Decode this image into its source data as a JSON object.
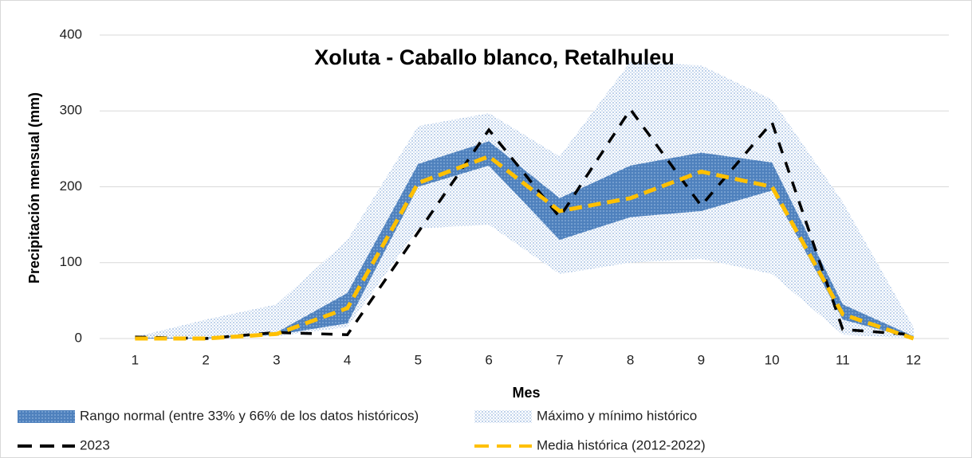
{
  "chart_data": {
    "type": "band-line",
    "title": "Xoluta - Caballo blanco, Retalhuleu",
    "x_label": "Mes",
    "y_label": "Precipitación mensual (mm)",
    "categories": [
      "1",
      "2",
      "3",
      "4",
      "5",
      "6",
      "7",
      "8",
      "9",
      "10",
      "11",
      "12"
    ],
    "ylim": [
      0,
      400
    ],
    "yticks": [
      0,
      100,
      200,
      300,
      400
    ],
    "grid": true,
    "legend": "bottom",
    "series": [
      {
        "name": "Rango normal (entre 33% y 66% de los datos históricos)",
        "kind": "band",
        "color": "#4f81bd",
        "low": [
          0,
          0,
          5,
          20,
          200,
          228,
          130,
          160,
          168,
          195,
          25,
          0
        ],
        "high": [
          1,
          1,
          8,
          60,
          230,
          260,
          185,
          228,
          245,
          232,
          45,
          3
        ]
      },
      {
        "name": "Máximo y mínimo histórico",
        "kind": "band",
        "color": "#9dbbe0",
        "low": [
          0,
          0,
          3,
          15,
          145,
          150,
          85,
          100,
          105,
          85,
          5,
          0
        ],
        "high": [
          2,
          25,
          45,
          130,
          280,
          297,
          240,
          365,
          360,
          315,
          180,
          15
        ]
      },
      {
        "name": "2023",
        "kind": "line",
        "color": "#000000",
        "values": [
          2,
          0,
          8,
          5,
          140,
          275,
          160,
          302,
          175,
          285,
          12,
          5
        ]
      },
      {
        "name": "Media histórica (2012-2022)",
        "kind": "line",
        "color": "#ffc000",
        "values": [
          0,
          0,
          6,
          40,
          205,
          240,
          168,
          185,
          220,
          200,
          32,
          0
        ]
      }
    ]
  }
}
